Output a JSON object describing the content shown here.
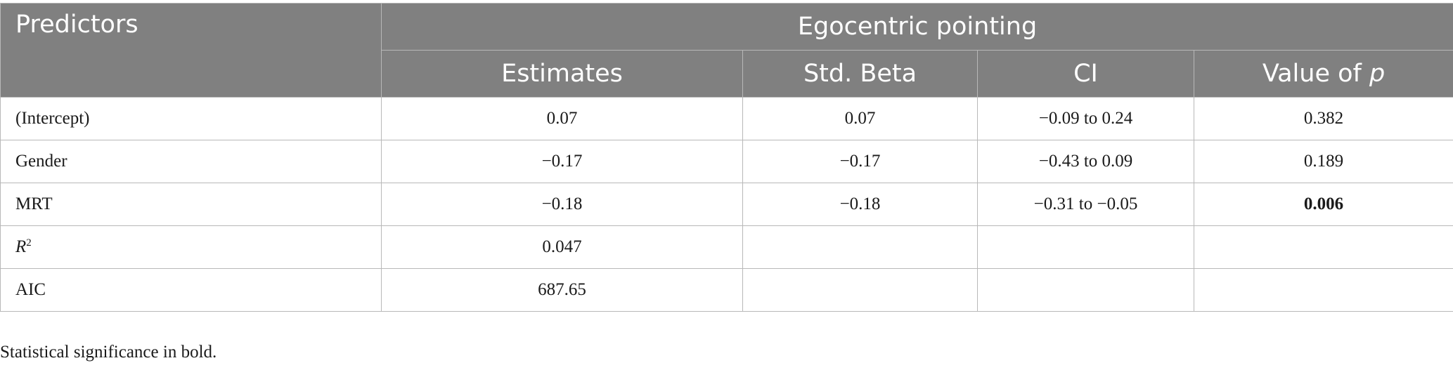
{
  "table": {
    "header": {
      "predictors": "Predictors",
      "group": "Egocentric pointing",
      "columns": {
        "estimates": "Estimates",
        "std_beta": "Std. Beta",
        "ci": "CI",
        "p_value_prefix": "Value of ",
        "p_value_symbol": "p"
      }
    },
    "rows": [
      {
        "label": "(Intercept)",
        "estimates": "0.07",
        "std_beta": "0.07",
        "ci": "−0.09 to 0.24",
        "p": "0.382",
        "p_bold": false
      },
      {
        "label": "Gender",
        "estimates": "−0.17",
        "std_beta": "−0.17",
        "ci": "−0.43 to 0.09",
        "p": "0.189",
        "p_bold": false
      },
      {
        "label": "MRT",
        "estimates": "−0.18",
        "std_beta": "−0.18",
        "ci": "−0.31 to −0.05",
        "p": "0.006",
        "p_bold": true
      },
      {
        "label_symbol": "R",
        "label_sup": "2",
        "estimates": "0.047",
        "std_beta": "",
        "ci": "",
        "p": ""
      },
      {
        "label": "AIC",
        "estimates": "687.65",
        "std_beta": "",
        "ci": "",
        "p": ""
      }
    ]
  },
  "footnote": "Statistical significance in bold."
}
